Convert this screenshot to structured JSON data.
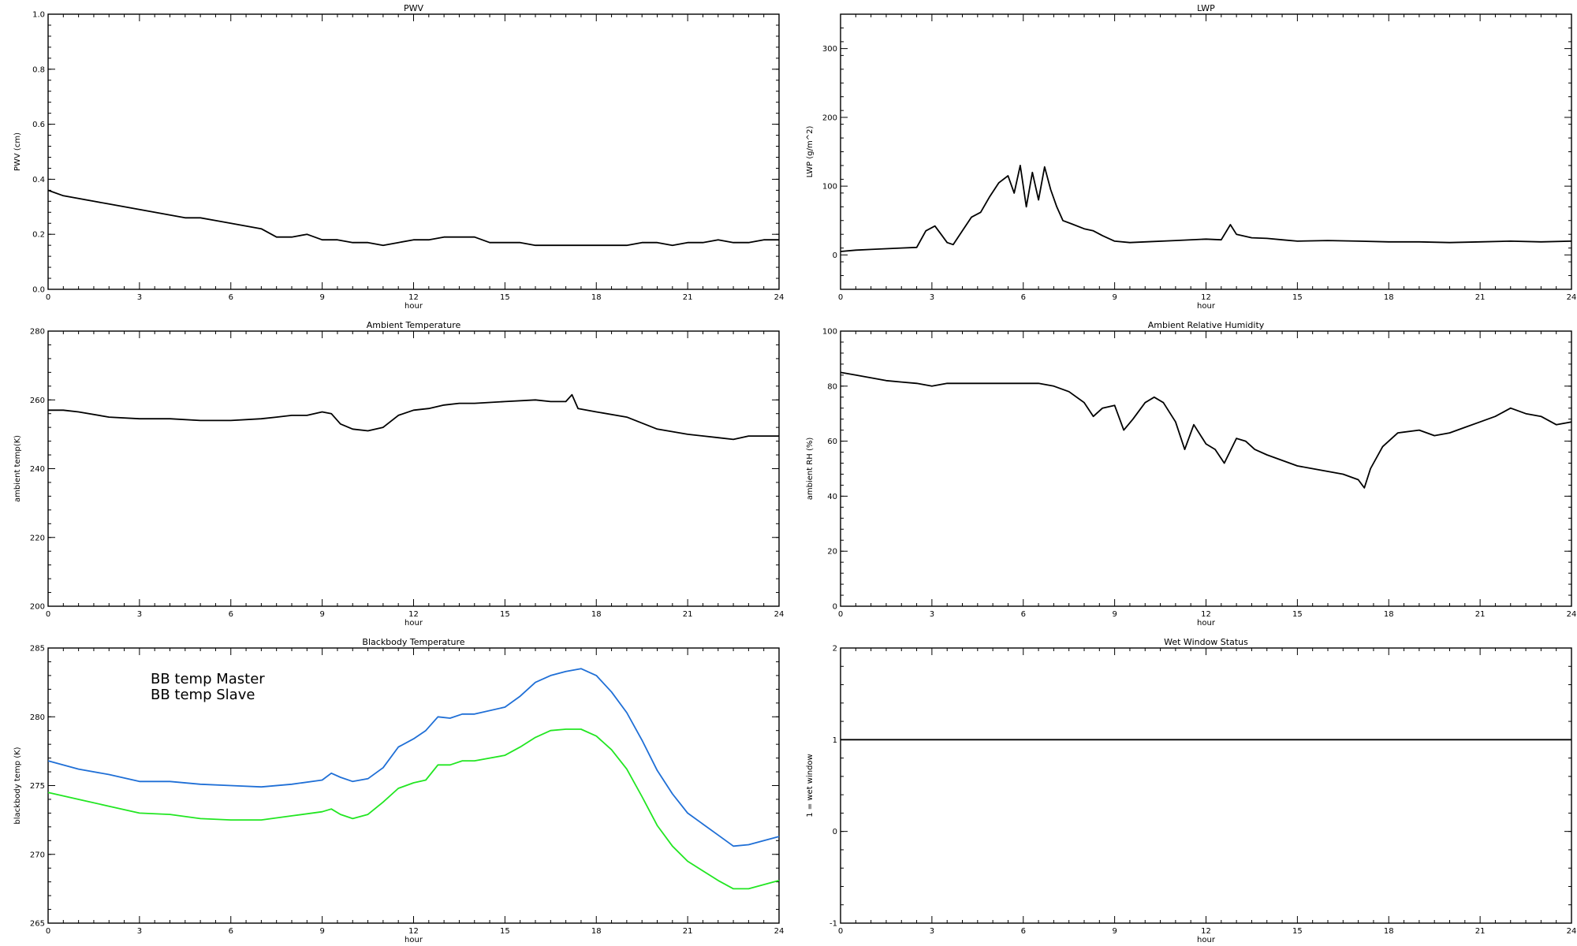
{
  "chart_data": [
    {
      "id": "pwv",
      "type": "line",
      "title": "PWV",
      "xlabel": "hour",
      "ylabel": "PWV (cm)",
      "xlim": [
        0,
        24
      ],
      "ylim": [
        0,
        1.0
      ],
      "xticks": [
        "0",
        "3",
        "6",
        "9",
        "12",
        "15",
        "18",
        "21",
        "24"
      ],
      "yticks": [
        "0.0",
        "0.2",
        "0.4",
        "0.6",
        "0.8",
        "1.0"
      ],
      "series": [
        {
          "color": "#000000",
          "x": [
            0,
            0.5,
            1,
            1.5,
            2,
            2.5,
            3,
            3.5,
            4,
            4.5,
            5,
            5.5,
            6,
            6.5,
            7,
            7.5,
            8,
            8.5,
            9,
            9.5,
            10,
            10.5,
            11,
            11.5,
            12,
            12.5,
            13,
            13.5,
            14,
            14.5,
            15,
            15.5,
            16,
            16.5,
            17,
            17.5,
            18,
            18.5,
            19,
            19.5,
            20,
            20.5,
            21,
            21.5,
            22,
            22.5,
            23,
            23.5,
            24
          ],
          "values": [
            0.36,
            0.34,
            0.33,
            0.32,
            0.31,
            0.3,
            0.29,
            0.28,
            0.27,
            0.26,
            0.26,
            0.25,
            0.24,
            0.23,
            0.22,
            0.19,
            0.19,
            0.2,
            0.18,
            0.18,
            0.17,
            0.17,
            0.16,
            0.17,
            0.18,
            0.18,
            0.19,
            0.19,
            0.19,
            0.17,
            0.17,
            0.17,
            0.16,
            0.16,
            0.16,
            0.16,
            0.16,
            0.16,
            0.16,
            0.17,
            0.17,
            0.16,
            0.17,
            0.17,
            0.18,
            0.17,
            0.17,
            0.18,
            0.18
          ]
        }
      ]
    },
    {
      "id": "lwp",
      "type": "line",
      "title": "LWP",
      "xlabel": "hour",
      "ylabel": "LWP (g/m^2)",
      "xlim": [
        0,
        24
      ],
      "ylim": [
        -50,
        350
      ],
      "xticks": [
        "0",
        "3",
        "6",
        "9",
        "12",
        "15",
        "18",
        "21",
        "24"
      ],
      "yticks": [
        "0",
        "100",
        "200",
        "300"
      ],
      "series": [
        {
          "color": "#000000",
          "x": [
            0,
            0.5,
            1,
            1.5,
            2,
            2.5,
            2.8,
            3.1,
            3.3,
            3.5,
            3.7,
            4,
            4.3,
            4.6,
            4.9,
            5.2,
            5.5,
            5.7,
            5.9,
            6.1,
            6.3,
            6.5,
            6.7,
            6.9,
            7.1,
            7.3,
            7.6,
            8,
            8.3,
            8.6,
            9,
            9.5,
            10,
            11,
            12,
            12.5,
            12.8,
            13,
            13.5,
            14,
            14.5,
            15,
            16,
            17,
            18,
            19,
            20,
            21,
            22,
            23,
            24
          ],
          "values": [
            5,
            7,
            8,
            9,
            10,
            11,
            35,
            42,
            30,
            18,
            15,
            35,
            55,
            62,
            85,
            105,
            115,
            90,
            130,
            70,
            120,
            80,
            128,
            95,
            70,
            50,
            45,
            38,
            35,
            28,
            20,
            18,
            19,
            21,
            23,
            22,
            44,
            30,
            25,
            24,
            22,
            20,
            21,
            20,
            19,
            19,
            18,
            19,
            20,
            19,
            20
          ]
        }
      ]
    },
    {
      "id": "ambient-temp",
      "type": "line",
      "title": "Ambient Temperature",
      "xlabel": "hour",
      "ylabel": "ambient temp(K)",
      "xlim": [
        0,
        24
      ],
      "ylim": [
        200,
        280
      ],
      "xticks": [
        "0",
        "3",
        "6",
        "9",
        "12",
        "15",
        "18",
        "21",
        "24"
      ],
      "yticks": [
        "200",
        "220",
        "240",
        "260",
        "280"
      ],
      "series": [
        {
          "color": "#000000",
          "x": [
            0,
            0.5,
            1,
            2,
            3,
            4,
            5,
            6,
            7,
            7.5,
            8,
            8.5,
            9,
            9.3,
            9.6,
            10,
            10.5,
            11,
            11.5,
            12,
            12.5,
            13,
            13.5,
            14,
            15,
            16,
            16.5,
            17,
            17.2,
            17.4,
            18,
            19,
            20,
            21,
            22,
            22.5,
            23,
            24
          ],
          "values": [
            257,
            257,
            256.5,
            255,
            254.5,
            254.5,
            254,
            254,
            254.5,
            255,
            255.5,
            255.5,
            256.5,
            256,
            253,
            251.5,
            251,
            252,
            255.5,
            257,
            257.5,
            258.5,
            259,
            259,
            259.5,
            260,
            259.5,
            259.5,
            261.5,
            257.5,
            256.5,
            255,
            251.5,
            250,
            249,
            248.5,
            249.5,
            249.5
          ]
        }
      ]
    },
    {
      "id": "ambient-rh",
      "type": "line",
      "title": "Ambient Relative Humidity",
      "xlabel": "hour",
      "ylabel": "ambient RH (%)",
      "xlim": [
        0,
        24
      ],
      "ylim": [
        0,
        100
      ],
      "xticks": [
        "0",
        "3",
        "6",
        "9",
        "12",
        "15",
        "18",
        "21",
        "24"
      ],
      "yticks": [
        "0",
        "20",
        "40",
        "60",
        "80",
        "100"
      ],
      "series": [
        {
          "color": "#000000",
          "x": [
            0,
            0.5,
            1,
            1.5,
            2,
            2.5,
            3,
            3.5,
            4,
            5,
            6,
            6.5,
            7,
            7.5,
            8,
            8.3,
            8.6,
            9,
            9.3,
            9.6,
            10,
            10.3,
            10.6,
            11,
            11.3,
            11.6,
            12,
            12.3,
            12.6,
            13,
            13.3,
            13.6,
            14,
            14.5,
            15,
            15.5,
            16,
            16.5,
            17,
            17.2,
            17.4,
            17.8,
            18.3,
            19,
            19.5,
            20,
            20.5,
            21,
            21.5,
            22,
            22.5,
            23,
            23.5,
            24
          ],
          "values": [
            85,
            84,
            83,
            82,
            81.5,
            81,
            80,
            81,
            81,
            81,
            81,
            81,
            80,
            78,
            74,
            69,
            72,
            73,
            64,
            68,
            74,
            76,
            74,
            67,
            57,
            66,
            59,
            57,
            52,
            61,
            60,
            57,
            55,
            53,
            51,
            50,
            49,
            48,
            46,
            43,
            50,
            58,
            63,
            64,
            62,
            63,
            65,
            67,
            69,
            72,
            70,
            69,
            66,
            67
          ]
        }
      ]
    },
    {
      "id": "bb-temp",
      "type": "line",
      "title": "Blackbody Temperature",
      "xlabel": "hour",
      "ylabel": "blackbody temp (K)",
      "xlim": [
        0,
        24
      ],
      "ylim": [
        265,
        285
      ],
      "xticks": [
        "0",
        "3",
        "6",
        "9",
        "12",
        "15",
        "18",
        "21",
        "24"
      ],
      "yticks": [
        "265",
        "270",
        "275",
        "280",
        "285"
      ],
      "legend": [
        "BB temp Master",
        "BB temp Slave"
      ],
      "series": [
        {
          "name": "BB temp Master",
          "color": "#1f6fd6",
          "x": [
            0,
            1,
            2,
            3,
            4,
            5,
            6,
            7,
            8,
            9,
            9.3,
            9.6,
            10,
            10.5,
            11,
            11.5,
            12,
            12.4,
            12.8,
            13.2,
            13.6,
            14,
            15,
            15.5,
            16,
            16.5,
            17,
            17.5,
            18,
            18.5,
            19,
            19.5,
            20,
            20.5,
            21,
            22,
            22.5,
            23,
            24
          ],
          "values": [
            276.8,
            276.2,
            275.8,
            275.3,
            275.3,
            275.1,
            275.0,
            274.9,
            275.1,
            275.4,
            275.9,
            275.6,
            275.3,
            275.5,
            276.3,
            277.8,
            278.4,
            279.0,
            280.0,
            279.9,
            280.2,
            280.2,
            280.7,
            281.5,
            282.5,
            283.0,
            283.3,
            283.5,
            283.0,
            281.8,
            280.3,
            278.3,
            276.1,
            274.4,
            273.0,
            271.4,
            270.6,
            270.7,
            271.3
          ]
        },
        {
          "name": "BB temp Slave",
          "color": "#22e622",
          "x": [
            0,
            1,
            2,
            3,
            4,
            5,
            6,
            7,
            8,
            9,
            9.3,
            9.6,
            10,
            10.5,
            11,
            11.5,
            12,
            12.4,
            12.8,
            13.2,
            13.6,
            14,
            15,
            15.5,
            16,
            16.5,
            17,
            17.5,
            18,
            18.5,
            19,
            19.5,
            20,
            20.5,
            21,
            22,
            22.5,
            23,
            24
          ],
          "values": [
            274.5,
            274.0,
            273.5,
            273.0,
            272.9,
            272.6,
            272.5,
            272.5,
            272.8,
            273.1,
            273.3,
            272.9,
            272.6,
            272.9,
            273.8,
            274.8,
            275.2,
            275.4,
            276.5,
            276.5,
            276.8,
            276.8,
            277.2,
            277.8,
            278.5,
            279.0,
            279.1,
            279.1,
            278.6,
            277.6,
            276.2,
            274.2,
            272.1,
            270.6,
            269.5,
            268.1,
            267.5,
            267.5,
            268.1
          ]
        }
      ]
    },
    {
      "id": "wet-window",
      "type": "line",
      "title": "Wet Window Status",
      "xlabel": "hour",
      "ylabel": "1 = wet window",
      "xlim": [
        0,
        24
      ],
      "ylim": [
        -1,
        2
      ],
      "xticks": [
        "0",
        "3",
        "6",
        "9",
        "12",
        "15",
        "18",
        "21",
        "24"
      ],
      "yticks": [
        "-1",
        "0",
        "1",
        "2"
      ],
      "series": [
        {
          "color": "#000000",
          "x": [
            0,
            24
          ],
          "values": [
            1,
            1
          ]
        }
      ]
    }
  ]
}
